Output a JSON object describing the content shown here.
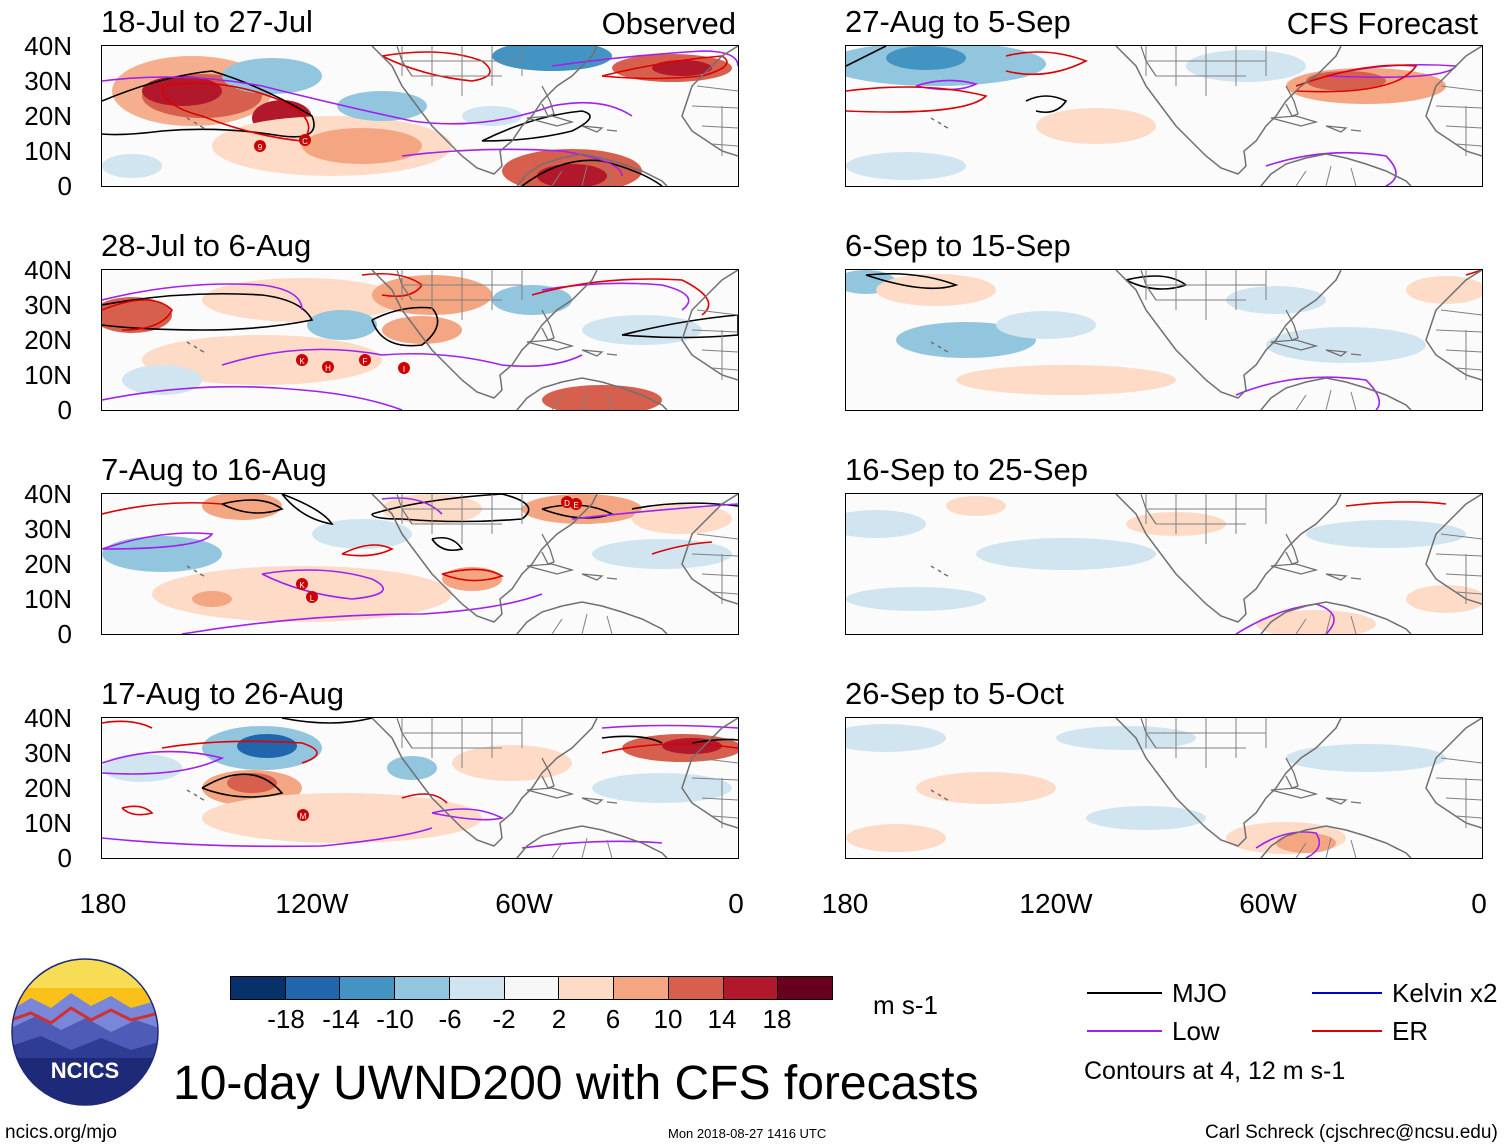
{
  "panels": [
    {
      "title": "18-Jul to 27-Jul",
      "tag": "Observed",
      "storms": [
        "9",
        "C"
      ]
    },
    {
      "title": "28-Jul to 6-Aug",
      "tag": "",
      "storms": [
        "K",
        "H",
        "F",
        "I"
      ]
    },
    {
      "title": "7-Aug to 16-Aug",
      "tag": "",
      "storms": [
        "D",
        "E",
        "K",
        "L"
      ]
    },
    {
      "title": "17-Aug to 26-Aug",
      "tag": "",
      "storms": [
        "M"
      ]
    },
    {
      "title": "27-Aug to 5-Sep",
      "tag": "CFS Forecast",
      "storms": []
    },
    {
      "title": "6-Sep to 15-Sep",
      "tag": "",
      "storms": []
    },
    {
      "title": "16-Sep to 25-Sep",
      "tag": "",
      "storms": []
    },
    {
      "title": "26-Sep to 5-Oct",
      "tag": "",
      "storms": []
    }
  ],
  "lat_labels": [
    "40N",
    "30N",
    "20N",
    "10N",
    "0"
  ],
  "lon_labels": [
    "180",
    "120W",
    "60W",
    "0"
  ],
  "colorbar": {
    "labels": [
      "-18",
      "-14",
      "-10",
      "-6",
      "-2",
      "2",
      "6",
      "10",
      "14",
      "18"
    ],
    "colors": [
      "#08306b",
      "#2166ac",
      "#4393c3",
      "#92c5de",
      "#d1e5f0",
      "#f7f7f7",
      "#fddbc7",
      "#f4a582",
      "#d6604d",
      "#b2182b",
      "#67001f"
    ],
    "units": "m s-1"
  },
  "legend": {
    "items": [
      {
        "label": "MJO",
        "color": "#000000"
      },
      {
        "label": "Kelvin x2",
        "color": "#0000cc"
      },
      {
        "label": "Low",
        "color": "#a020f0"
      },
      {
        "label": "ER",
        "color": "#dd0000"
      }
    ],
    "note": "Contours at 4, 12 m s-1"
  },
  "logo": {
    "text": "NCICS"
  },
  "title": "10-day UWND200 with CFS forecasts",
  "footer": {
    "left": "ncics.org/mjo",
    "center": "Mon 2018-08-27 1416 UTC",
    "right": "Carl Schreck (cjschrec@ncsu.edu)"
  }
}
